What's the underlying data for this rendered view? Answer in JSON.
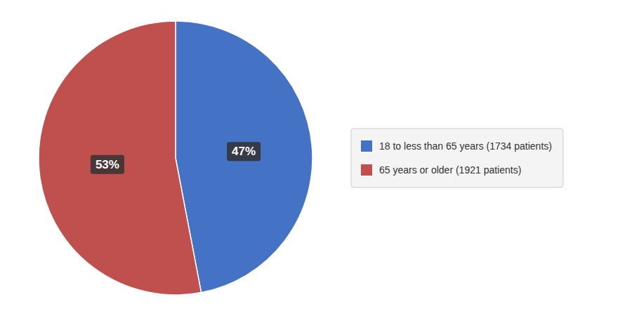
{
  "chart_data": {
    "type": "pie",
    "categories": [
      "18 to less than 65 years (1734 patients)",
      "65 years or older (1921 patients)"
    ],
    "values": [
      47,
      53
    ],
    "value_labels": [
      "47%",
      "53%"
    ],
    "colors": [
      "#4472C4",
      "#C0504D"
    ],
    "data_labels": true,
    "legend": "right"
  }
}
